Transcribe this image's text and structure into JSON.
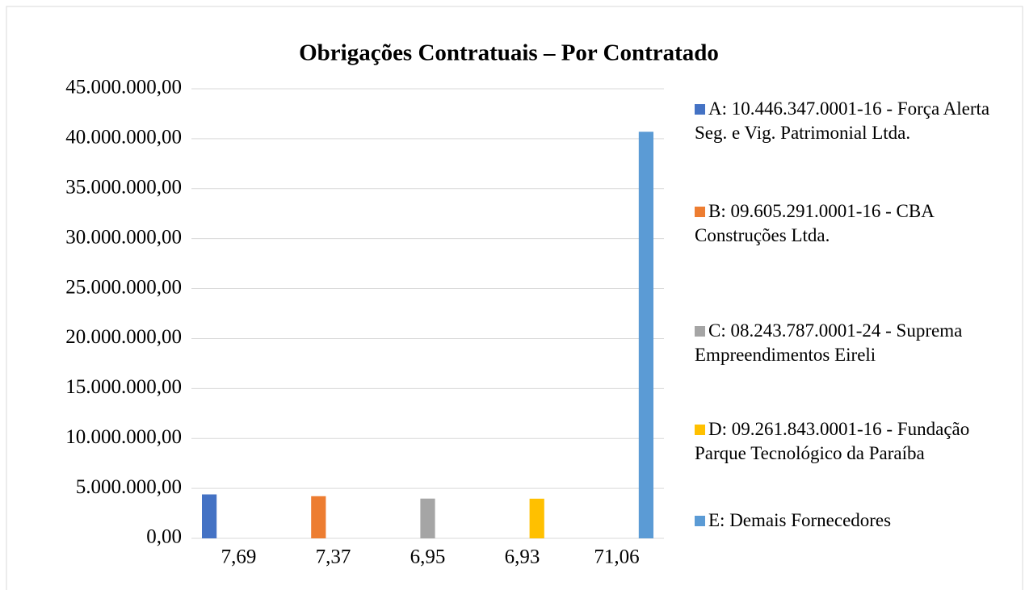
{
  "chart_data": {
    "type": "bar",
    "title": "Obrigações Contratuais – Por Contratado",
    "categories": [
      "7,69",
      "7,37",
      "6,95",
      "6,93",
      "71,06"
    ],
    "series": [
      {
        "name": "A: 10.446.347.0001-16 - Força Alerta Seg. e Vig. Patrimonial Ltda.",
        "color": "#4472c4",
        "values": [
          4400000,
          null,
          null,
          null,
          null
        ]
      },
      {
        "name": "B: 09.605.291.0001-16 - CBA Construções Ltda.",
        "color": "#ed7d31",
        "values": [
          null,
          4220000,
          null,
          null,
          null
        ]
      },
      {
        "name": "C: 08.243.787.0001-24 - Suprema Empreendimentos Eireli",
        "color": "#a5a5a5",
        "values": [
          null,
          null,
          3980000,
          null,
          null
        ]
      },
      {
        "name": "D: 09.261.843.0001-16 - Fundação Parque Tecnológico da Paraíba",
        "color": "#ffc000",
        "values": [
          null,
          null,
          null,
          3970000,
          null
        ]
      },
      {
        "name": "E: Demais Fornecedores",
        "color": "#5b9bd5",
        "values": [
          null,
          null,
          null,
          null,
          40700000
        ]
      }
    ],
    "ylim": [
      0,
      45000000
    ],
    "yticks": [
      {
        "value": 0,
        "label": "0,00"
      },
      {
        "value": 5000000,
        "label": "5.000.000,00"
      },
      {
        "value": 10000000,
        "label": "10.000.000,00"
      },
      {
        "value": 15000000,
        "label": "15.000.000,00"
      },
      {
        "value": 20000000,
        "label": "20.000.000,00"
      },
      {
        "value": 25000000,
        "label": "25.000.000,00"
      },
      {
        "value": 30000000,
        "label": "30.000.000,00"
      },
      {
        "value": 35000000,
        "label": "35.000.000,00"
      },
      {
        "value": 40000000,
        "label": "40.000.000,00"
      },
      {
        "value": 45000000,
        "label": "45.000.000,00"
      }
    ],
    "grid": true,
    "legend": "right"
  }
}
